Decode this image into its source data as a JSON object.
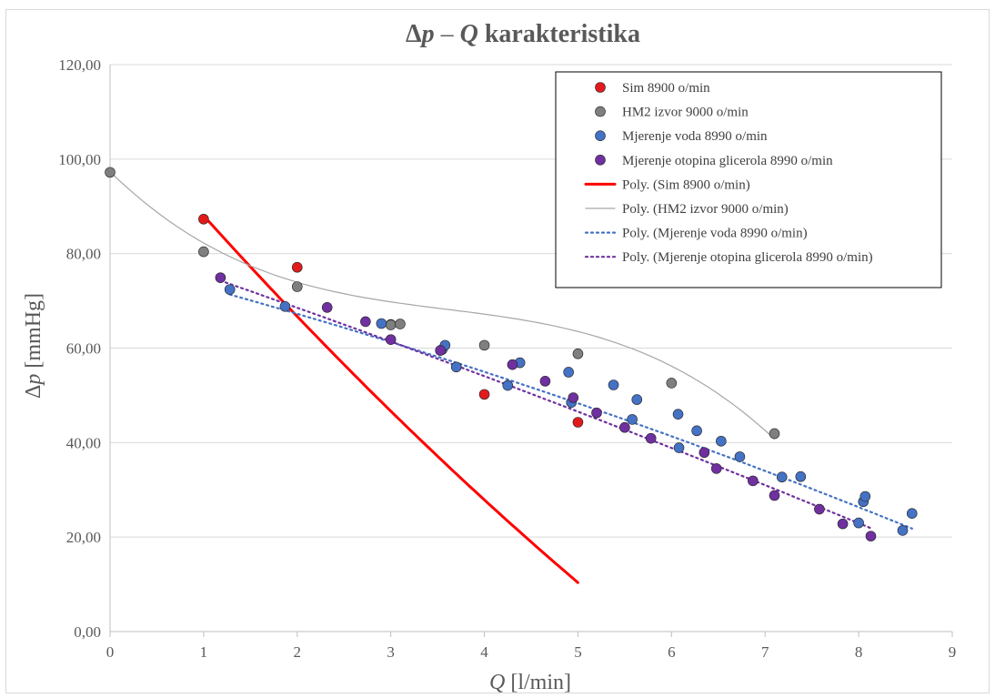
{
  "chart_data": {
    "type": "scatter",
    "title": {
      "symbol1": "Δ",
      "var1": "p",
      "dash": " – ",
      "var2": "Q",
      "rest": " karakteristika"
    },
    "xlabel": {
      "var": "Q",
      "unit": " [l/min]"
    },
    "ylabel": {
      "symbol": "Δ",
      "var": "p",
      "unit": " [mmHg]"
    },
    "xlim": [
      0,
      9
    ],
    "ylim": [
      0,
      120
    ],
    "xticks": [
      "0",
      "1",
      "2",
      "3",
      "4",
      "5",
      "6",
      "7",
      "8",
      "9"
    ],
    "yticks": [
      "0,00",
      "20,00",
      "40,00",
      "60,00",
      "80,00",
      "100,00",
      "120,00"
    ],
    "grid": "horizontal",
    "legend_position": "top-right",
    "series": [
      {
        "name": "Sim 8900 o/min",
        "color": "#e31a1c",
        "points": [
          [
            1,
            87.3
          ],
          [
            2,
            77.1
          ],
          [
            3,
            65.0
          ],
          [
            4,
            50.2
          ],
          [
            5,
            44.3
          ]
        ]
      },
      {
        "name": "HM2 izvor 9000 o/min",
        "color": "#7f7f7f",
        "points": [
          [
            0,
            97.2
          ],
          [
            1,
            80.4
          ],
          [
            2,
            73.0
          ],
          [
            3,
            64.9
          ],
          [
            3.1,
            65.1
          ],
          [
            4,
            60.6
          ],
          [
            5,
            58.8
          ],
          [
            6,
            52.6
          ],
          [
            7.1,
            41.9
          ]
        ]
      },
      {
        "name": "Mjerenje voda 8990 o/min",
        "color": "#4472c4",
        "points": [
          [
            1.28,
            72.4
          ],
          [
            1.87,
            68.8
          ],
          [
            2.9,
            65.2
          ],
          [
            3.55,
            59.7
          ],
          [
            3.58,
            60.6
          ],
          [
            3.7,
            56.0
          ],
          [
            4.25,
            52.1
          ],
          [
            4.38,
            56.9
          ],
          [
            4.9,
            54.9
          ],
          [
            4.93,
            48.5
          ],
          [
            5.38,
            52.2
          ],
          [
            5.58,
            44.9
          ],
          [
            5.63,
            49.1
          ],
          [
            6.07,
            46.0
          ],
          [
            6.08,
            38.9
          ],
          [
            6.27,
            42.5
          ],
          [
            6.53,
            40.3
          ],
          [
            6.73,
            37.0
          ],
          [
            7.18,
            32.7
          ],
          [
            7.38,
            32.8
          ],
          [
            8.0,
            23.0
          ],
          [
            8.05,
            27.5
          ],
          [
            8.07,
            28.6
          ],
          [
            8.47,
            21.4
          ],
          [
            8.57,
            25.0
          ]
        ]
      },
      {
        "name": "Mjerenje otopina glicerola 8990 o/min",
        "color": "#7030a0",
        "points": [
          [
            1.18,
            74.9
          ],
          [
            2.32,
            68.6
          ],
          [
            2.73,
            65.6
          ],
          [
            3.0,
            61.8
          ],
          [
            3.53,
            59.5
          ],
          [
            4.3,
            56.5
          ],
          [
            4.65,
            53.0
          ],
          [
            4.95,
            49.5
          ],
          [
            5.2,
            46.3
          ],
          [
            5.5,
            43.2
          ],
          [
            5.78,
            40.9
          ],
          [
            6.35,
            37.9
          ],
          [
            6.48,
            34.5
          ],
          [
            6.87,
            31.9
          ],
          [
            7.1,
            28.8
          ],
          [
            7.58,
            25.9
          ],
          [
            7.83,
            22.8
          ],
          [
            8.13,
            20.2
          ]
        ]
      }
    ],
    "trendlines": [
      {
        "name": "Poly. (Sim 8900 o/min)",
        "color": "#ff0000",
        "style": "solid",
        "width": 3,
        "x_range": [
          1,
          5
        ],
        "coef": [
          110.62,
          -23.225,
          0.635
        ]
      },
      {
        "name": "Poly. (HM2 izvor 9000 o/min)",
        "color": "#a6a6a6",
        "style": "solid",
        "width": 1.2,
        "x_range": [
          0,
          7.1
        ],
        "coef": [
          97.34,
          -19.34,
          4.69,
          -0.435
        ]
      },
      {
        "name": "Poly. (Mjerenje voda 8990 o/min)",
        "color": "#4472c4",
        "style": "dotted",
        "width": 2.2,
        "x_range": [
          1.28,
          8.57
        ],
        "coef": [
          78.17,
          -5.12,
          -0.17
        ]
      },
      {
        "name": "Poly. (Mjerenje otopina glicerola 8990 o/min)",
        "color": "#7030a0",
        "style": "dotted",
        "width": 2.2,
        "x_range": [
          1.18,
          8.13
        ],
        "coef": [
          82.3,
          -6.7,
          -0.09
        ]
      }
    ]
  }
}
